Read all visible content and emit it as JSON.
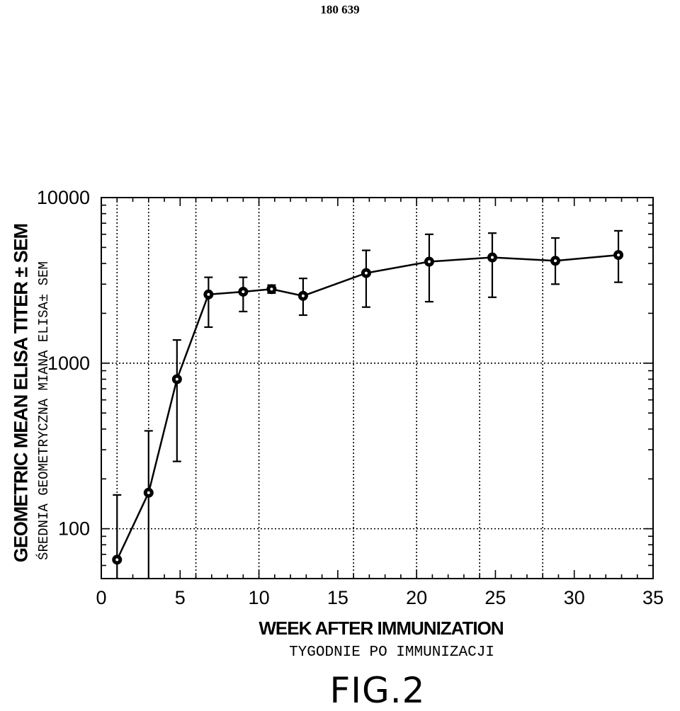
{
  "page_number": "180 639",
  "figure_label": "FIG.2",
  "chart_data": {
    "type": "line",
    "title": "",
    "xlabel": "WEEK AFTER IMMUNIZATION",
    "xlabel_secondary": "TYGODNIE PO IMMUNIZACJI",
    "ylabel": "GEOMETRIC MEAN ELISA TITER ± SEM",
    "ylabel_secondary": "ŚREDNIA GEOMETRYCZNA MIANA ELISA± SEM",
    "xlim": [
      0,
      35
    ],
    "ylim": [
      50,
      10000
    ],
    "yscale": "log",
    "grid": true,
    "x_ticks": [
      0,
      5,
      10,
      15,
      20,
      25,
      30,
      35
    ],
    "x_tick_labels": [
      "0",
      "5",
      "10",
      "15",
      "20",
      "25",
      "30",
      "35"
    ],
    "y_ticks": [
      100,
      1000,
      10000
    ],
    "y_tick_labels": [
      "100",
      "1000",
      "10000"
    ],
    "x_gridlines": [
      1,
      3,
      6,
      10,
      16,
      20,
      24,
      28
    ],
    "series": [
      {
        "x": [
          1,
          3,
          4.8,
          6.8,
          9,
          10.8,
          12.8,
          16.8,
          20.8,
          24.8,
          28.8,
          32.8
        ],
        "y": [
          65,
          165,
          800,
          2600,
          2700,
          2800,
          2550,
          3500,
          4100,
          4350,
          4150,
          4500
        ],
        "err_low": [
          50,
          50,
          255,
          1650,
          2050,
          2650,
          1950,
          2180,
          2350,
          2500,
          3000,
          3080
        ],
        "err_high": [
          160,
          390,
          1380,
          3300,
          3300,
          2960,
          3250,
          4800,
          6000,
          6100,
          5700,
          6300
        ]
      }
    ]
  }
}
